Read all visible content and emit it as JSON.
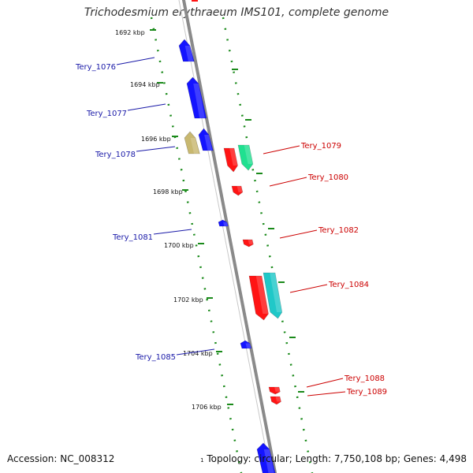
{
  "title": "Trichodesmium erythraeum IMS101, complete genome",
  "accession": "Accession: NC_008312",
  "summary": "Topology: circular; Length: 7,750,108 bp; Genes: 4,498",
  "summary_prefix": "1",
  "colors": {
    "backbone": "#8a8a8a",
    "forward_gene": "#1414ff",
    "reverse_gene": "#ff1414",
    "forward_label": "#1a1aa8",
    "reverse_label": "#cc0000",
    "tick": "#1a8a1a",
    "teal": "#20c8c8",
    "green": "#20e090",
    "khaki": "#c8b870"
  },
  "scale_ticks": [
    {
      "label": "1692 kbp"
    },
    {
      "label": "1694 kbp"
    },
    {
      "label": "1696 kbp"
    },
    {
      "label": "1698 kbp"
    },
    {
      "label": "1700 kbp"
    },
    {
      "label": "1702 kbp"
    },
    {
      "label": "1704 kbp"
    },
    {
      "label": "1706 kbp"
    }
  ],
  "left_labels": [
    {
      "text": "Tery_1076"
    },
    {
      "text": "Tery_1077"
    },
    {
      "text": "Tery_1078"
    },
    {
      "text": "Tery_1081"
    },
    {
      "text": "Tery_1085"
    }
  ],
  "right_labels": [
    {
      "text": "Tery_1079"
    },
    {
      "text": "Tery_1080"
    },
    {
      "text": "Tery_1082"
    },
    {
      "text": "Tery_1084"
    },
    {
      "text": "Tery_1088"
    },
    {
      "text": "Tery_1089"
    }
  ]
}
